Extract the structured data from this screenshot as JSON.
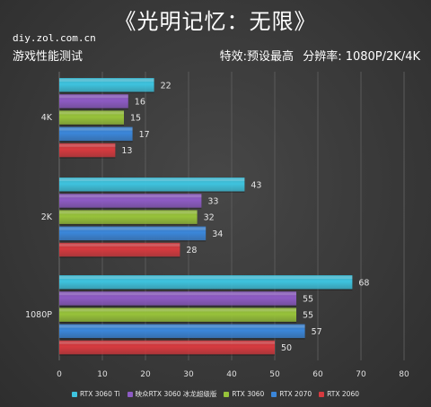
{
  "header": {
    "title": "《光明记忆：无限》",
    "source": "diy.zol.com.cn",
    "subtitle_left": "游戏性能测试",
    "subtitle_effect": "特效:预设最高",
    "subtitle_resolution": "分辨率: 1080P/2K/4K"
  },
  "colors": {
    "RTX 3060 Ti": "#3ec3de",
    "映众RTX 3060 冰龙超级版": "#8d5bc4",
    "RTX 3060": "#97c23a",
    "RTX 2070": "#3b86d9",
    "RTX 2060": "#d63a3f"
  },
  "chart_data": {
    "type": "bar",
    "orientation": "horizontal",
    "categories": [
      "4K",
      "2K",
      "1080P"
    ],
    "series": [
      {
        "name": "RTX 3060 Ti",
        "values": [
          22,
          43,
          68
        ]
      },
      {
        "name": "映众RTX 3060 冰龙超级版",
        "values": [
          16,
          33,
          55
        ]
      },
      {
        "name": "RTX 3060",
        "values": [
          15,
          32,
          55
        ]
      },
      {
        "name": "RTX 2070",
        "values": [
          17,
          34,
          57
        ]
      },
      {
        "name": "RTX 2060",
        "values": [
          13,
          28,
          50
        ]
      }
    ],
    "xlim": [
      0,
      80
    ],
    "xticks": [
      0,
      10,
      20,
      30,
      40,
      50,
      60,
      70,
      80
    ],
    "grid": true,
    "legend_position": "bottom",
    "data_labels": true
  }
}
